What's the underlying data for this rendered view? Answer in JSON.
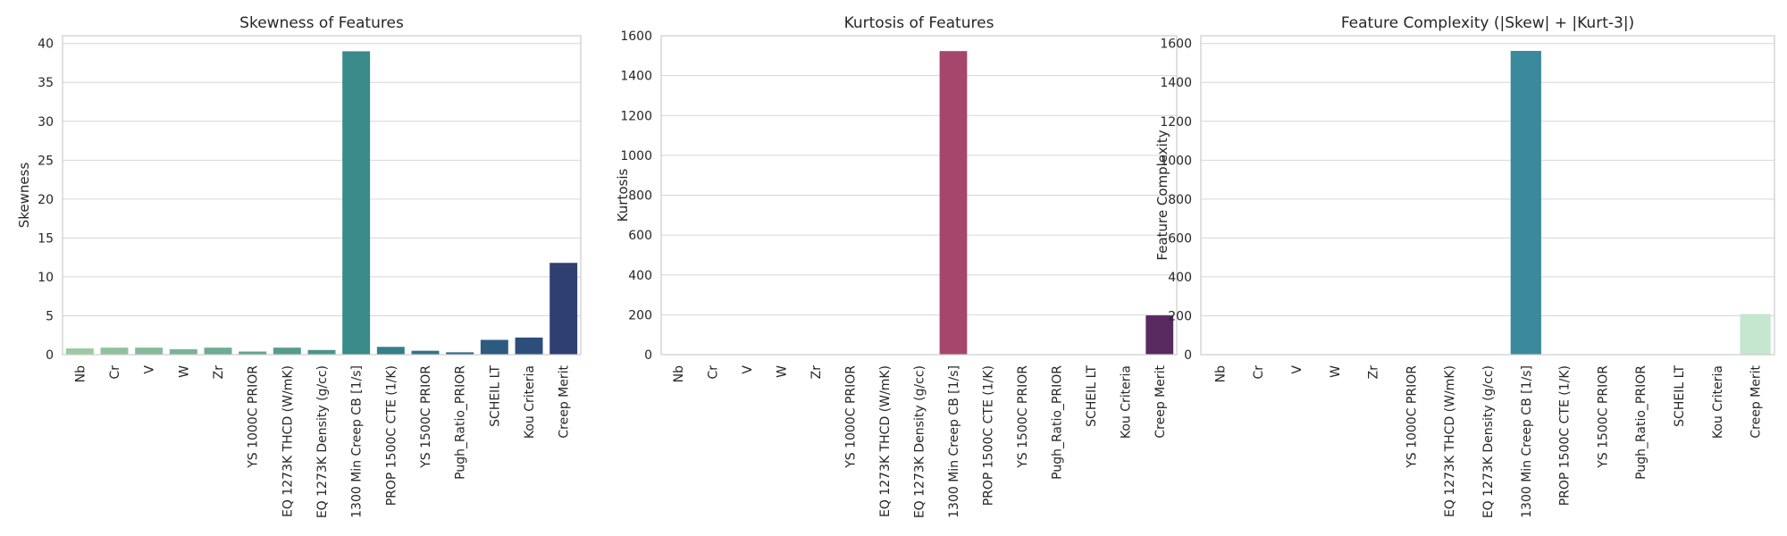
{
  "chart_data": [
    {
      "type": "bar",
      "title": "Skewness of Features",
      "xlabel": "",
      "ylabel": "Skewness",
      "ylim": [
        0,
        41
      ],
      "yticks": [
        0,
        5,
        10,
        15,
        20,
        25,
        30,
        35,
        40
      ],
      "grid": "y",
      "palette": "crest",
      "categories": [
        "Nb",
        "Cr",
        "V",
        "W",
        "Zr",
        "YS 1000C PRIOR",
        "EQ 1273K THCD (W/mK)",
        "EQ 1273K Density (g/cc)",
        "1300 Min Creep CB [1/s]",
        "PROP 1500C CTE (1/K)",
        "YS 1500C PRIOR",
        "Pugh_Ratio_PRIOR",
        "SCHEIL LT",
        "Kou Criteria",
        "Creep Merit"
      ],
      "values": [
        0.8,
        0.9,
        0.9,
        0.7,
        0.9,
        0.4,
        0.9,
        0.6,
        39.0,
        1.0,
        0.5,
        0.3,
        1.9,
        2.2,
        11.8
      ],
      "colors": [
        "#9cc9a1",
        "#90c19d",
        "#85ba99",
        "#79b396",
        "#6eab93",
        "#62a490",
        "#569c8e",
        "#4a958c",
        "#3a8a8a",
        "#347f89",
        "#307387",
        "#2e6785",
        "#2c5b81",
        "#2d4e7b",
        "#2f3f70"
      ]
    },
    {
      "type": "bar",
      "title": "Kurtosis of Features",
      "xlabel": "",
      "ylabel": "Kurtosis",
      "ylim": [
        0,
        1600
      ],
      "yticks": [
        0,
        200,
        400,
        600,
        800,
        1000,
        1200,
        1400,
        1600
      ],
      "grid": "y",
      "palette": "flare",
      "categories": [
        "Nb",
        "Cr",
        "V",
        "W",
        "Zr",
        "YS 1000C PRIOR",
        "EQ 1273K THCD (W/mK)",
        "EQ 1273K Density (g/cc)",
        "1300 Min Creep CB [1/s]",
        "PROP 1500C CTE (1/K)",
        "YS 1500C PRIOR",
        "Pugh_Ratio_PRIOR",
        "SCHEIL LT",
        "Kou Criteria",
        "Creep Merit"
      ],
      "values": [
        0,
        0,
        0,
        0,
        0,
        0,
        0,
        0,
        1523,
        0,
        0,
        0,
        0,
        0,
        197
      ],
      "colors": [
        "#f0a06e",
        "#ec916a",
        "#e78267",
        "#e07366",
        "#d86566",
        "#ce5967",
        "#c24f6a",
        "#b6476c",
        "#a7466d",
        "#9a3f6d",
        "#8c396c",
        "#7f3469",
        "#713064",
        "#642c5f",
        "#582a5f"
      ]
    },
    {
      "type": "bar",
      "title": "Feature Complexity (|Skew| + |Kurt-3|)",
      "xlabel": "",
      "ylabel": "Feature Complexity",
      "ylim": [
        0,
        1640
      ],
      "yticks": [
        0,
        200,
        400,
        600,
        800,
        1000,
        1200,
        1400,
        1600
      ],
      "grid": "y",
      "palette": "mako",
      "categories": [
        "Nb",
        "Cr",
        "V",
        "W",
        "Zr",
        "YS 1000C PRIOR",
        "EQ 1273K THCD (W/mK)",
        "EQ 1273K Density (g/cc)",
        "1300 Min Creep CB [1/s]",
        "PROP 1500C CTE (1/K)",
        "YS 1500C PRIOR",
        "Pugh_Ratio_PRIOR",
        "SCHEIL LT",
        "Kou Criteria",
        "Creep Merit"
      ],
      "values": [
        0,
        0,
        0,
        0,
        0,
        0,
        0,
        0,
        1562,
        0,
        0,
        0,
        0,
        0,
        209
      ],
      "colors": [
        "#2c1e3d",
        "#342a54",
        "#38366b",
        "#38447f",
        "#355489",
        "#33638d",
        "#347290",
        "#3a8a9a",
        "#3b8a9c",
        "#43a2a3",
        "#55b5a8",
        "#76c4ac",
        "#98d1b4",
        "#b2dbc0",
        "#c5e6cf"
      ]
    }
  ]
}
